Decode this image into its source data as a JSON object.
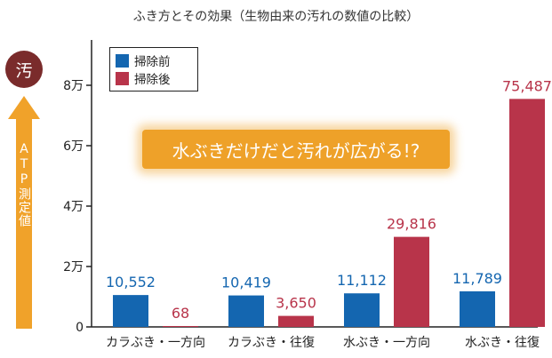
{
  "colors": {
    "before": "#1466b0",
    "after": "#b8344a",
    "arrow": "#f0a22a",
    "circle": "#7a2b2b",
    "callout": "#eea129"
  },
  "icons": {
    "dirty": "dirt-kanji-icon",
    "arrow": "up-arrow-icon"
  },
  "left": {
    "circle_text": "汚",
    "arrow_label": "ATP測定値"
  },
  "callout_text": "水ぶきだけだと汚れが広がる!?",
  "chart_data": {
    "type": "bar",
    "title": "ふき方とその効果（生物由来の汚れの数値の比較）",
    "categories": [
      "カラぶき・一方向",
      "カラぶき・往復",
      "水ぶき・一方向",
      "水ぶき・往復"
    ],
    "series": [
      {
        "name": "掃除前",
        "values": [
          10552,
          10419,
          11112,
          11789
        ],
        "labels": [
          "10,552",
          "10,419",
          "11,112",
          "11,789"
        ]
      },
      {
        "name": "掃除後",
        "values": [
          68,
          3650,
          29816,
          75487
        ],
        "labels": [
          "68",
          "3,650",
          "29,816",
          "75,487"
        ]
      }
    ],
    "yticks": [
      0,
      20000,
      40000,
      60000,
      80000
    ],
    "ytick_labels": [
      "0",
      "2万",
      "4万",
      "6万",
      "8万"
    ],
    "ylim": [
      0,
      80000
    ],
    "grid": false,
    "legend_position": "top-left"
  }
}
